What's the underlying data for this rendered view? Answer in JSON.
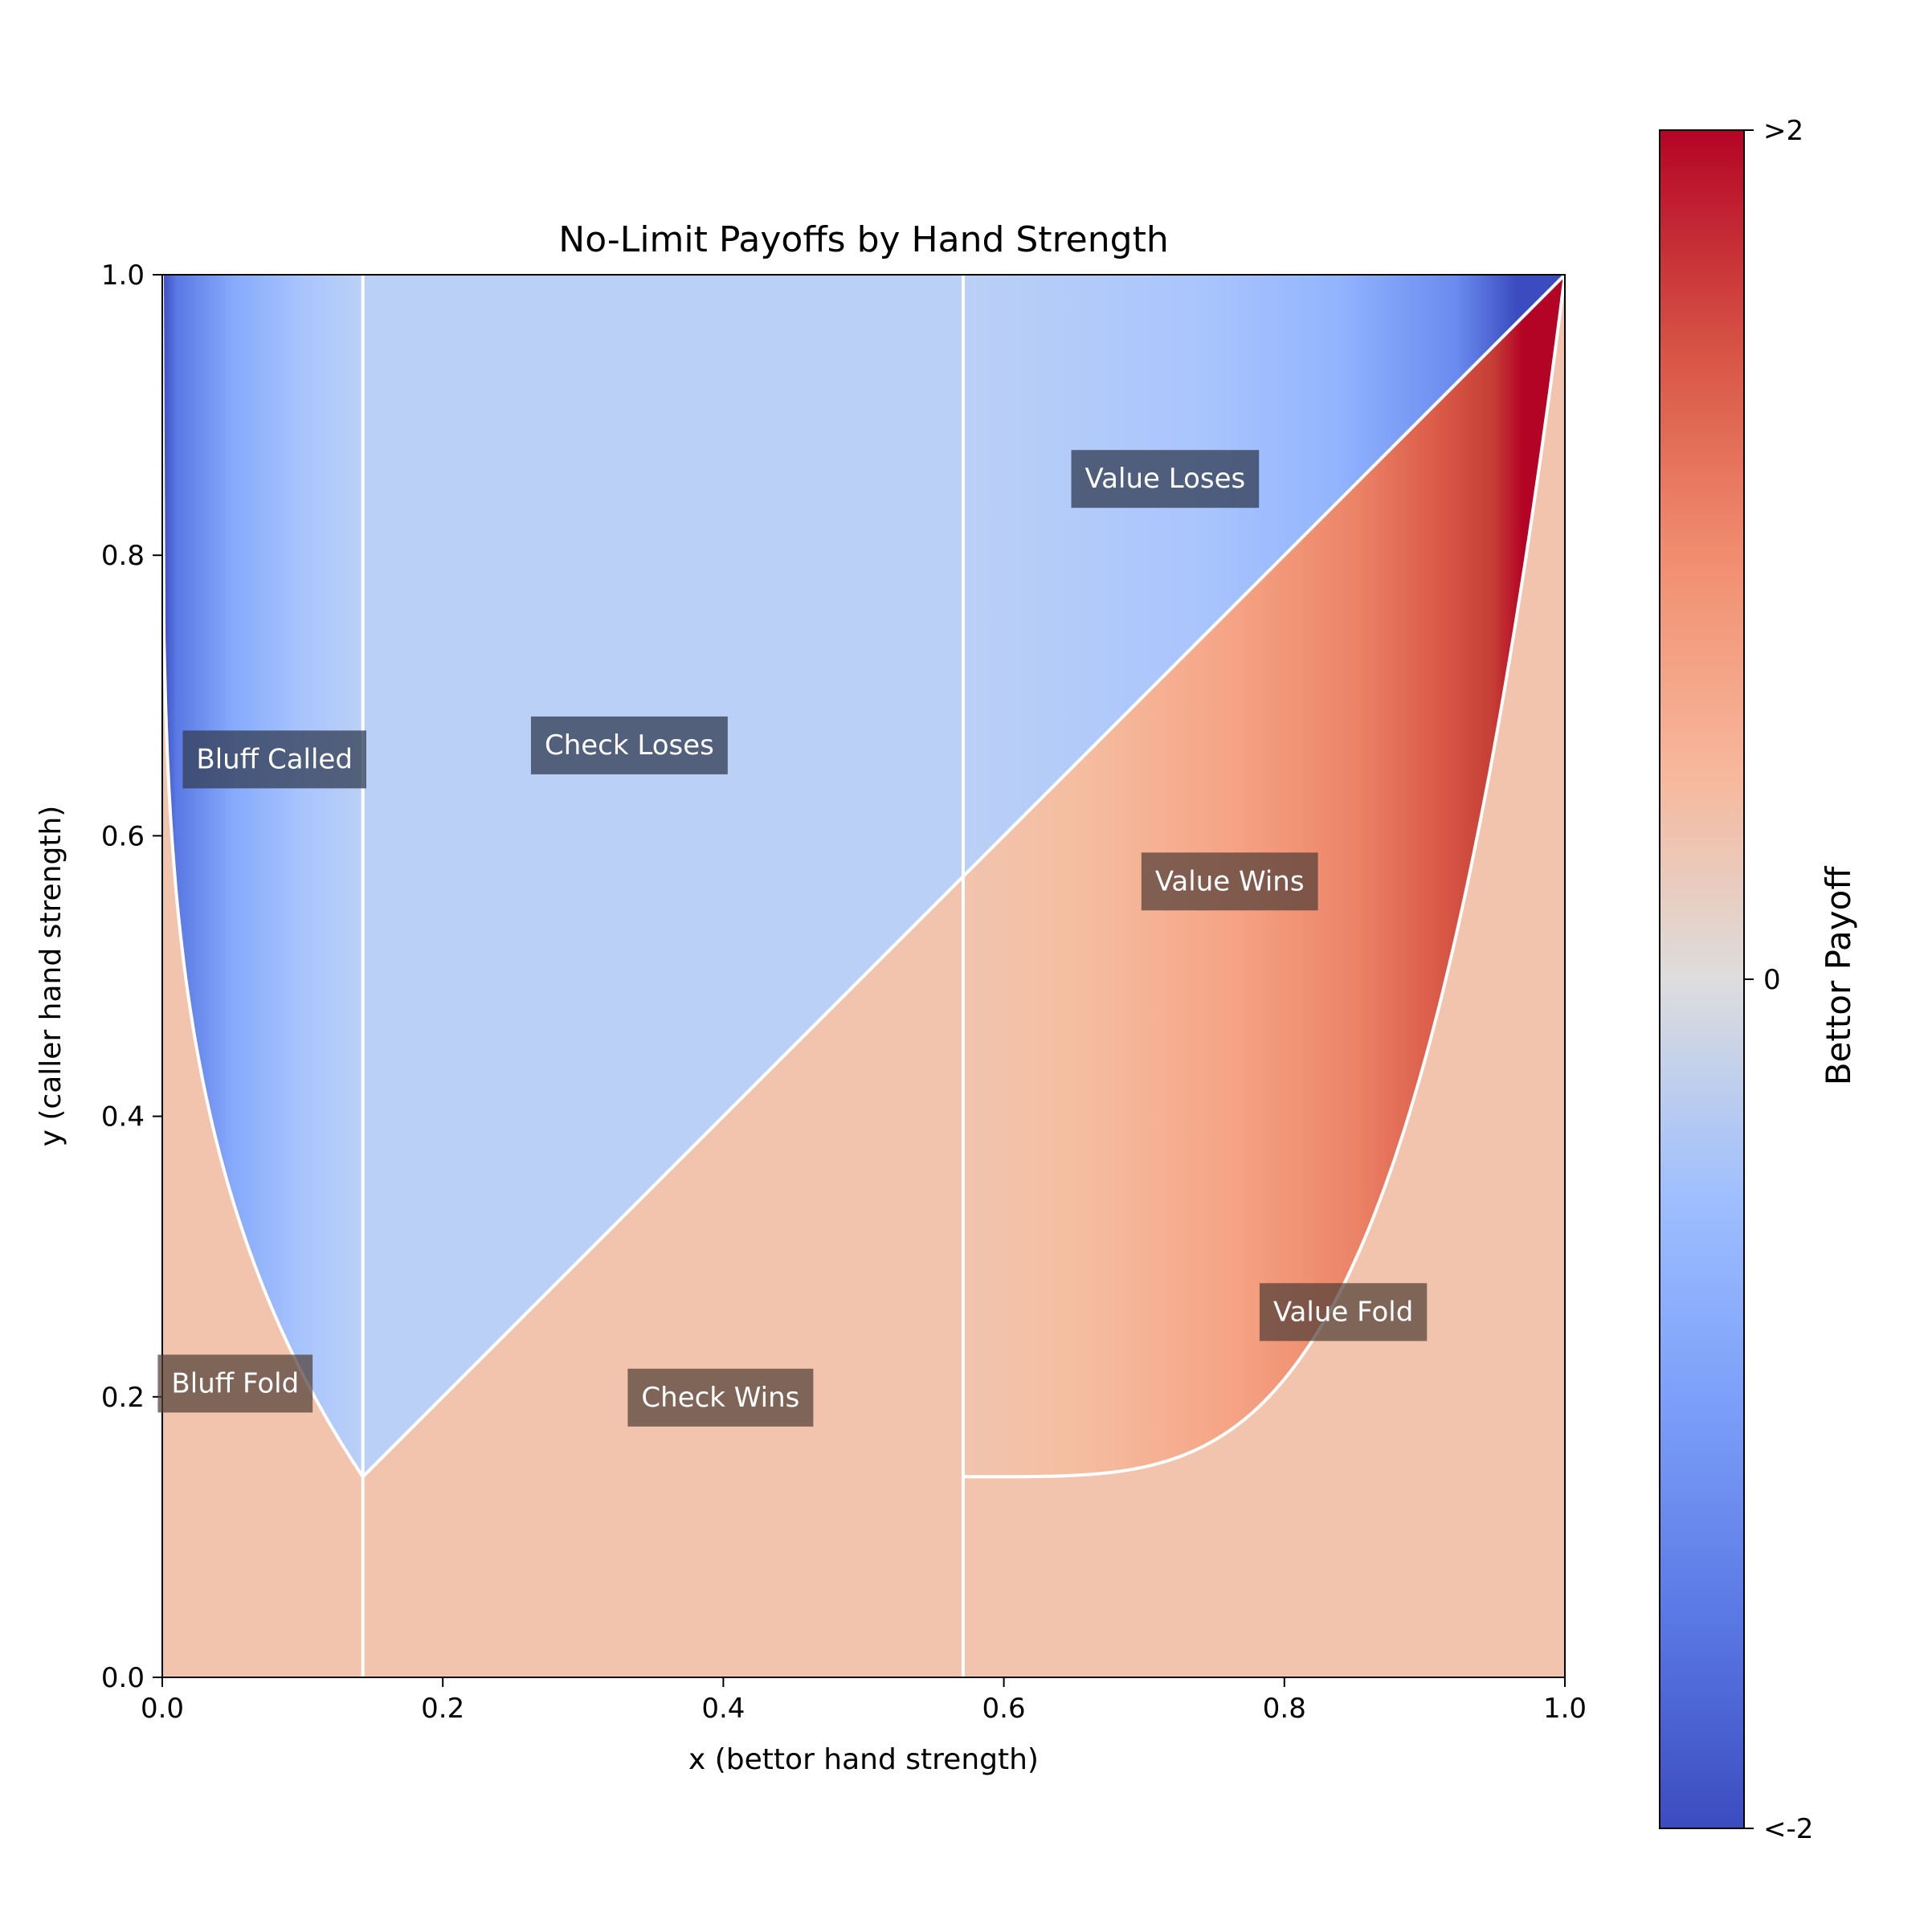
{
  "chart_data": {
    "type": "heatmap",
    "title": "No-Limit Payoffs by Hand Strength",
    "xlabel": "x (bettor hand strength)",
    "ylabel": "y (caller hand strength)",
    "xlim": [
      0,
      1
    ],
    "ylim": [
      0,
      1
    ],
    "x_ticks": [
      "0.0",
      "0.2",
      "0.4",
      "0.6",
      "0.8",
      "1.0"
    ],
    "y_ticks": [
      "0.0",
      "0.2",
      "0.4",
      "0.6",
      "0.8",
      "1.0"
    ],
    "grid": false,
    "thresholds": {
      "bluff_upper": 0.143,
      "value_lower": 0.571,
      "call_at_bluff_upper": 0.143,
      "call_at_value_lower": 0.143
    },
    "boundary_exponent": 4,
    "colors": {
      "win_flat": "#f2c4ae",
      "lose_flat": "#bbd0f6",
      "cmap_low": "#3b4cc0",
      "cmap_mid": "#dddddd",
      "cmap_high": "#b40426",
      "boundary": "#ffffff"
    },
    "regions": [
      {
        "label": "Bluff Called",
        "x": 0.08,
        "y": 0.655,
        "tone": "dark-blue"
      },
      {
        "label": "Check Loses",
        "x": 0.333,
        "y": 0.665,
        "tone": "dark-blue"
      },
      {
        "label": "Value Loses",
        "x": 0.715,
        "y": 0.855,
        "tone": "dark-blue"
      },
      {
        "label": "Value Wins",
        "x": 0.761,
        "y": 0.568,
        "tone": "dark-brown"
      },
      {
        "label": "Value Fold",
        "x": 0.842,
        "y": 0.261,
        "tone": "dark-brown"
      },
      {
        "label": "Check Wins",
        "x": 0.398,
        "y": 0.2,
        "tone": "dark-brown"
      },
      {
        "label": "Bluff Fold",
        "x": 0.052,
        "y": 0.21,
        "tone": "dark-brown"
      }
    ],
    "colorbar": {
      "label": "Bettor Payoff",
      "range": [
        -2,
        2
      ],
      "ticks": [
        {
          "value": 2,
          "label": ">2"
        },
        {
          "value": 0,
          "label": "0"
        },
        {
          "value": -2,
          "label": "<-2"
        }
      ]
    }
  }
}
